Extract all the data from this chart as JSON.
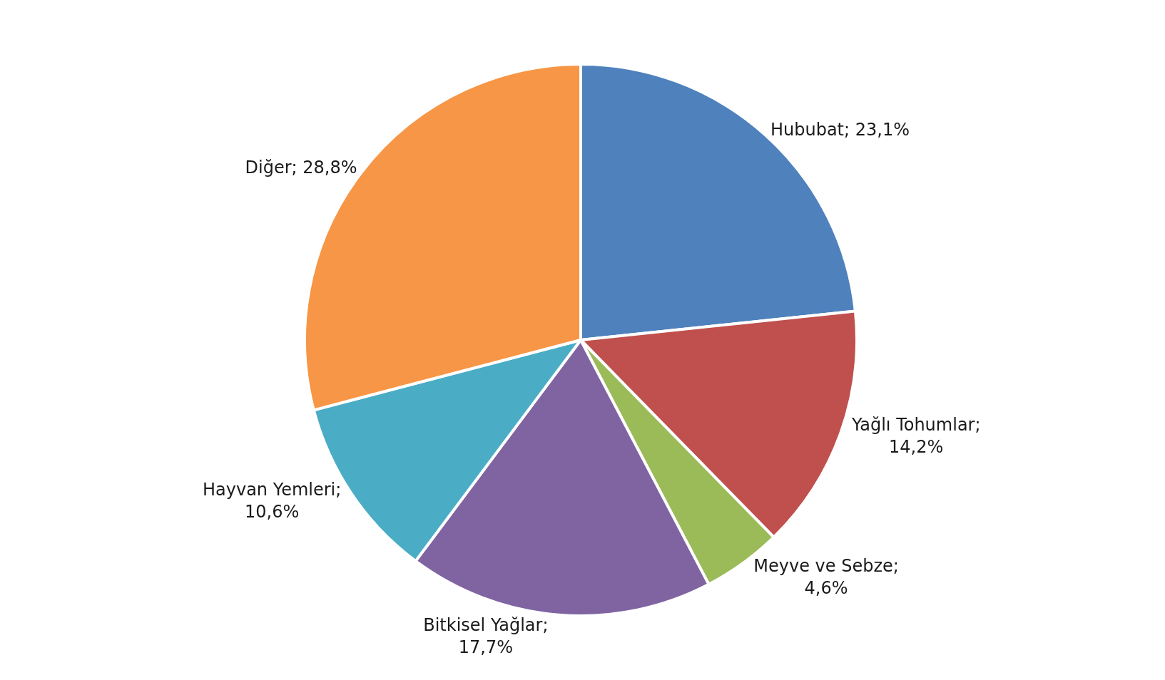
{
  "chart_data": {
    "type": "pie",
    "categories": [
      "Hububat",
      "Yağlı Tohumlar",
      "Meyve ve Sebze",
      "Bitkisel Yağlar",
      "Hayvan Yemleri",
      "Diğer"
    ],
    "values": [
      23.1,
      14.2,
      4.6,
      17.7,
      10.6,
      28.8
    ],
    "value_labels": [
      "; 23,1%",
      ";\n14,2%",
      ";\n4,6%",
      ";\n17,7%",
      ";\n10,6%",
      "; 28,8%"
    ],
    "colors": [
      "#4f81bd",
      "#c0504d",
      "#9bbb59",
      "#8064a2",
      "#4bacc6",
      "#f79646"
    ],
    "legend": false
  }
}
